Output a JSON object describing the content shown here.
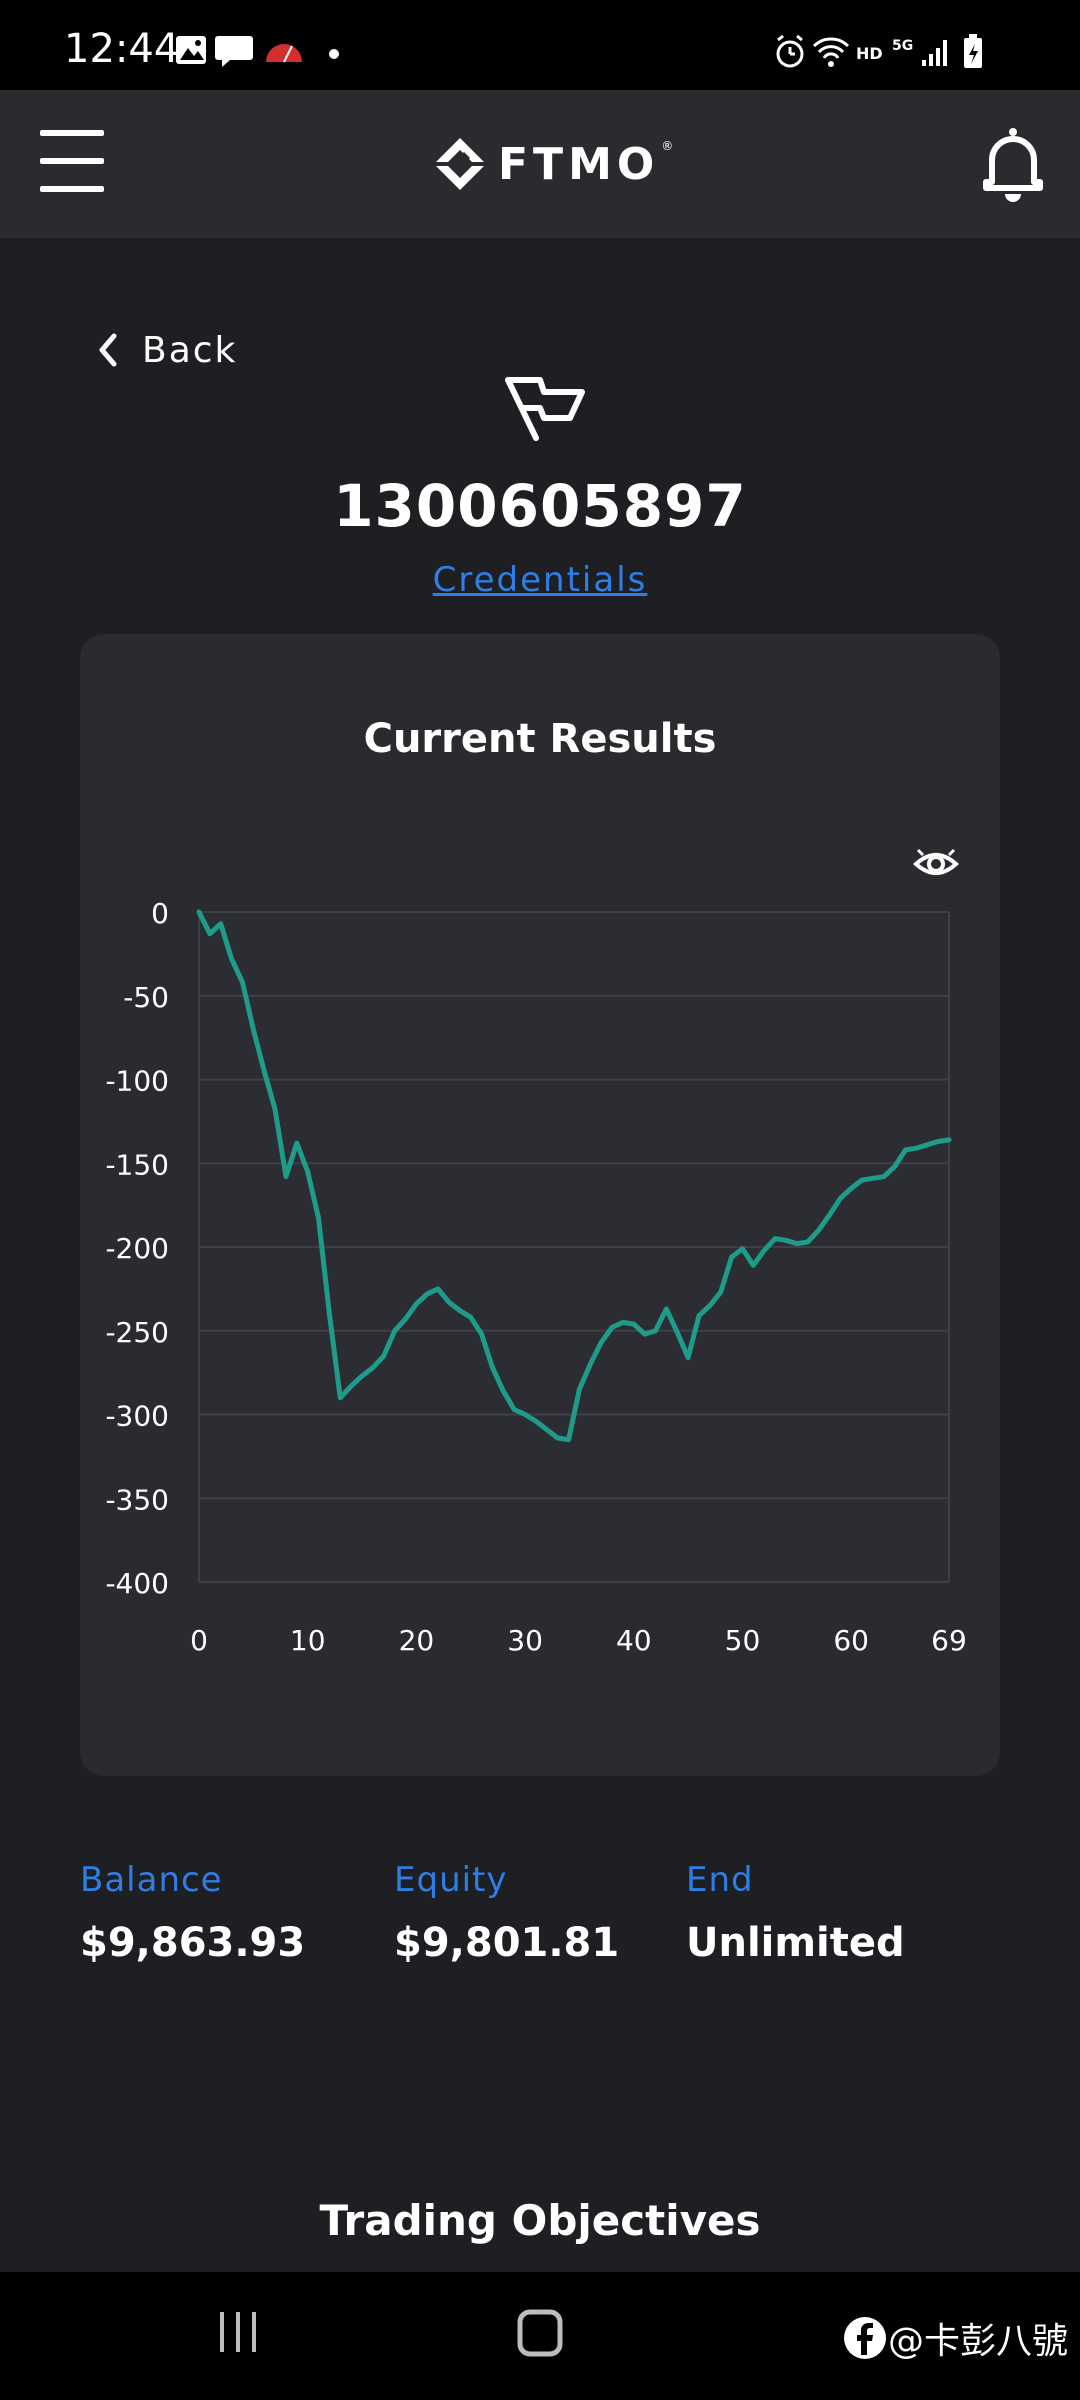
{
  "status_bar": {
    "time": "12:44",
    "left_icons": [
      "image-icon",
      "message-icon",
      "speedometer-icon",
      "dot-icon"
    ],
    "right_icons": [
      "alarm-icon",
      "wifi-icon",
      "hd-icon",
      "5g-icon",
      "signal-icon",
      "battery-icon"
    ],
    "hd_label": "HD",
    "network_label": "5G"
  },
  "app_bar": {
    "brand": "FTMO",
    "brand_mark": "®"
  },
  "nav": {
    "back_label": "Back"
  },
  "account": {
    "number": "1300605897",
    "credentials_link": "Credentials"
  },
  "results_card": {
    "title": "Current Results"
  },
  "chart_data": {
    "type": "line",
    "title": "",
    "xlabel": "",
    "ylabel": "",
    "x_ticks": [
      "0",
      "10",
      "20",
      "30",
      "40",
      "50",
      "60",
      "69"
    ],
    "y_ticks": [
      "0",
      "-50",
      "-100",
      "-150",
      "-200",
      "-250",
      "-300",
      "-350",
      "-400"
    ],
    "xlim": [
      0,
      69
    ],
    "ylim": [
      -400,
      0
    ],
    "grid": true,
    "line_color": "#1f9b8a",
    "series": [
      {
        "x": [
          0,
          1,
          2,
          3,
          4,
          5,
          6,
          7,
          8,
          9,
          10,
          11,
          12,
          13,
          14,
          15,
          16,
          17,
          18,
          19,
          20,
          21,
          22,
          23,
          24,
          25,
          26,
          27,
          28,
          29,
          30,
          31,
          32,
          33,
          34,
          35,
          36,
          37,
          38,
          39,
          40,
          41,
          42,
          43,
          44,
          45,
          46,
          47,
          48,
          49,
          50,
          51,
          52,
          53,
          54,
          55,
          56,
          57,
          58,
          59,
          60,
          61,
          62,
          63,
          64,
          65,
          66,
          67,
          68,
          69
        ],
        "values": [
          0,
          -13,
          -7,
          -28,
          -42,
          -70,
          -95,
          -118,
          -158,
          -138,
          -155,
          -183,
          -240,
          -290,
          -283,
          -277,
          -272,
          -265,
          -250,
          -243,
          -234,
          -228,
          -225,
          -233,
          -238,
          -242,
          -252,
          -272,
          -286,
          -297,
          -300,
          -304,
          -309,
          -314,
          -315,
          -285,
          -270,
          -257,
          -248,
          -245,
          -246,
          -252,
          -250,
          -237,
          -251,
          -266,
          -241,
          -235,
          -227,
          -206,
          -201,
          -211,
          -202,
          -195,
          -196,
          -198,
          -197,
          -190,
          -181,
          -171,
          -165,
          -160,
          -159,
          -158,
          -152,
          -142,
          -141,
          -139,
          -137,
          -136
        ]
      }
    ]
  },
  "stats": {
    "balance_label": "Balance",
    "balance_value": "$9,863.93",
    "equity_label": "Equity",
    "equity_value": "$9,801.81",
    "end_label": "End",
    "end_value": "Unlimited"
  },
  "section": {
    "trading_objectives": "Trading Objectives"
  },
  "system_nav": {
    "watermark": "@卡彭八號"
  },
  "colors": {
    "accent_blue": "#2f7ee6",
    "background": "#1e1f22",
    "card": "#2a2b2f",
    "line": "#1f9b8a"
  }
}
